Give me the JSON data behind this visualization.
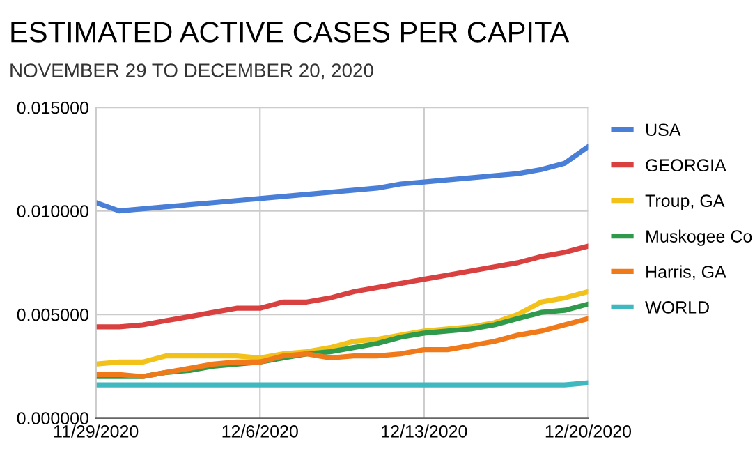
{
  "chart_data": {
    "type": "line",
    "title": "ESTIMATED ACTIVE CASES PER CAPITA",
    "subtitle": "NOVEMBER 29 TO DECEMBER 20, 2020",
    "x": [
      "2020-11-29",
      "2020-11-30",
      "2020-12-01",
      "2020-12-02",
      "2020-12-03",
      "2020-12-04",
      "2020-12-05",
      "2020-12-06",
      "2020-12-07",
      "2020-12-08",
      "2020-12-09",
      "2020-12-10",
      "2020-12-11",
      "2020-12-12",
      "2020-12-13",
      "2020-12-14",
      "2020-12-15",
      "2020-12-16",
      "2020-12-17",
      "2020-12-18",
      "2020-12-19",
      "2020-12-20"
    ],
    "series": [
      {
        "name": "USA",
        "color": "#4a7fd8",
        "values": [
          0.0104,
          0.01,
          0.0101,
          0.0102,
          0.0103,
          0.0104,
          0.0105,
          0.0106,
          0.0107,
          0.0108,
          0.0109,
          0.011,
          0.0111,
          0.0113,
          0.0114,
          0.0115,
          0.0116,
          0.0117,
          0.0118,
          0.012,
          0.0123,
          0.0131
        ]
      },
      {
        "name": "GEORGIA",
        "color": "#d94040",
        "values": [
          0.0044,
          0.0044,
          0.0045,
          0.0047,
          0.0049,
          0.0051,
          0.0053,
          0.0053,
          0.0056,
          0.0056,
          0.0058,
          0.0061,
          0.0063,
          0.0065,
          0.0067,
          0.0069,
          0.0071,
          0.0073,
          0.0075,
          0.0078,
          0.008,
          0.0083
        ]
      },
      {
        "name": "Troup, GA",
        "color": "#f2c21b",
        "values": [
          0.0026,
          0.0027,
          0.0027,
          0.003,
          0.003,
          0.003,
          0.003,
          0.0029,
          0.0031,
          0.0032,
          0.0034,
          0.0037,
          0.0038,
          0.004,
          0.0042,
          0.0043,
          0.0044,
          0.0046,
          0.005,
          0.0056,
          0.0058,
          0.0061
        ]
      },
      {
        "name": "Muskogee Co",
        "color": "#2f9a4c",
        "values": [
          0.002,
          0.002,
          0.002,
          0.0022,
          0.0023,
          0.0025,
          0.0026,
          0.0027,
          0.0029,
          0.0031,
          0.0032,
          0.0034,
          0.0036,
          0.0039,
          0.0041,
          0.0042,
          0.0043,
          0.0045,
          0.0048,
          0.0051,
          0.0052,
          0.0055
        ]
      },
      {
        "name": "Harris, GA",
        "color": "#f07a1a",
        "values": [
          0.0021,
          0.0021,
          0.002,
          0.0022,
          0.0024,
          0.0026,
          0.0027,
          0.0027,
          0.003,
          0.0031,
          0.0029,
          0.003,
          0.003,
          0.0031,
          0.0033,
          0.0033,
          0.0035,
          0.0037,
          0.004,
          0.0042,
          0.0045,
          0.0048
        ]
      },
      {
        "name": "WORLD",
        "color": "#40b8c0",
        "values": [
          0.0016,
          0.0016,
          0.0016,
          0.0016,
          0.0016,
          0.0016,
          0.0016,
          0.0016,
          0.0016,
          0.0016,
          0.0016,
          0.0016,
          0.0016,
          0.0016,
          0.0016,
          0.0016,
          0.0016,
          0.0016,
          0.0016,
          0.0016,
          0.0016,
          0.0017
        ]
      }
    ],
    "xlim": [
      "2020-11-29",
      "2020-12-20"
    ],
    "xticks": [
      {
        "value": "2020-11-29",
        "label": "11/29/2020"
      },
      {
        "value": "2020-12-06",
        "label": "12/6/2020"
      },
      {
        "value": "2020-12-13",
        "label": "12/13/2020"
      },
      {
        "value": "2020-12-20",
        "label": "12/20/2020"
      }
    ],
    "ylim": [
      0,
      0.015
    ],
    "yticks": [
      {
        "value": 0,
        "label": "0.000000"
      },
      {
        "value": 0.005,
        "label": "0.005000"
      },
      {
        "value": 0.01,
        "label": "0.010000"
      },
      {
        "value": 0.015,
        "label": "0.015000"
      }
    ],
    "grid": true,
    "legend": "right",
    "marker": "none",
    "line_style": "solid"
  }
}
